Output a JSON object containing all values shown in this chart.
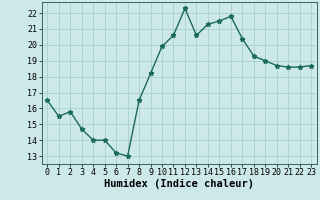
{
  "x": [
    0,
    1,
    2,
    3,
    4,
    5,
    6,
    7,
    8,
    9,
    10,
    11,
    12,
    13,
    14,
    15,
    16,
    17,
    18,
    19,
    20,
    21,
    22,
    23
  ],
  "y": [
    16.5,
    15.5,
    15.8,
    14.7,
    14.0,
    14.0,
    13.2,
    13.0,
    16.5,
    18.2,
    19.9,
    20.6,
    22.3,
    20.6,
    21.3,
    21.5,
    21.8,
    20.4,
    19.3,
    19.0,
    18.7,
    18.6,
    18.6,
    18.7
  ],
  "xlabel": "Humidex (Indice chaleur)",
  "ylim": [
    12.5,
    22.7
  ],
  "xlim": [
    -0.5,
    23.5
  ],
  "yticks": [
    13,
    14,
    15,
    16,
    17,
    18,
    19,
    20,
    21,
    22
  ],
  "xticks": [
    0,
    1,
    2,
    3,
    4,
    5,
    6,
    7,
    8,
    9,
    10,
    11,
    12,
    13,
    14,
    15,
    16,
    17,
    18,
    19,
    20,
    21,
    22,
    23
  ],
  "line_color": "#1a6b5a",
  "marker": "*",
  "bg_color": "#cce8e8",
  "grid_color": "#aacfcf",
  "xlabel_fontsize": 7.5,
  "tick_fontsize": 6.0,
  "linewidth": 1.0,
  "markersize": 3.5
}
